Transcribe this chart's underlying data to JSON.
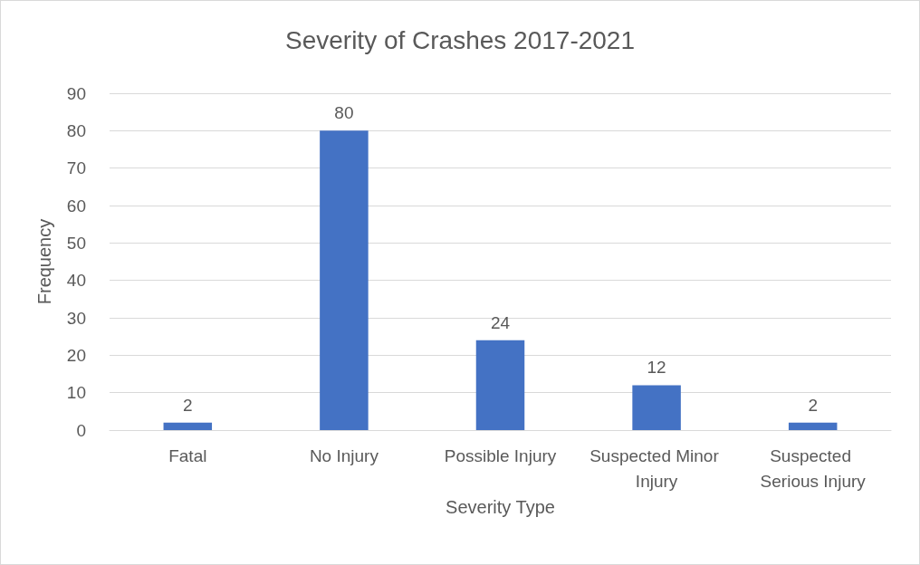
{
  "chart_data": {
    "type": "bar",
    "title": "Severity of Crashes 2017-2021",
    "xlabel": "Severity Type",
    "ylabel": "Frequency",
    "categories": [
      "Fatal",
      "No Injury",
      "Possible Injury",
      "Suspected Minor Injury",
      "Suspected Serious Injury"
    ],
    "values": [
      2,
      80,
      24,
      12,
      2
    ],
    "color": "#4472c4",
    "ylim": [
      0,
      90
    ],
    "yticks": [
      0,
      10,
      20,
      30,
      40,
      50,
      60,
      70,
      80,
      90
    ],
    "grid": "y",
    "data_labels": true
  }
}
